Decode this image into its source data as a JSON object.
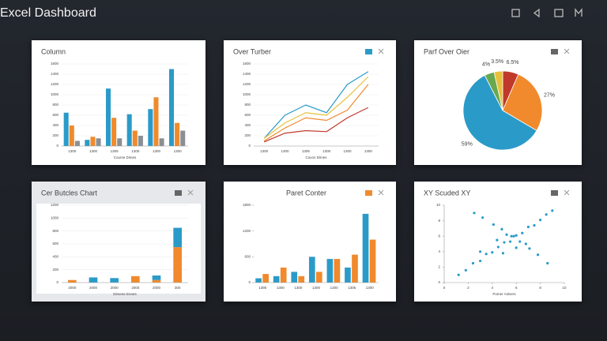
{
  "header": {
    "title": "Excel Dashboard"
  },
  "chart_data": [
    {
      "type": "bar",
      "title": "Column",
      "x_label": "Course Dimes",
      "categories": [
        "1300",
        "1300",
        "1305",
        "1300",
        "1300",
        "1300"
      ],
      "series": [
        {
          "color": "#2a9bc8",
          "values": [
            650,
            120,
            1120,
            620,
            720,
            1500
          ]
        },
        {
          "color": "#f08a2c",
          "values": [
            400,
            180,
            550,
            300,
            950,
            450
          ]
        },
        {
          "color": "#8a8f94",
          "values": [
            100,
            150,
            150,
            200,
            150,
            300
          ]
        }
      ],
      "ylim": [
        0,
        1600
      ],
      "yticks": [
        0,
        200,
        400,
        600,
        800,
        1000,
        1200,
        1400,
        1600
      ],
      "grid": true
    },
    {
      "type": "line",
      "title": "Over Turber",
      "x_label": "Cuvon Dimes",
      "categories": [
        "1300",
        "1300",
        "1305",
        "1300",
        "1300",
        "1300"
      ],
      "series": [
        {
          "color": "#2a9bc8",
          "values": [
            150,
            600,
            800,
            650,
            1200,
            1450
          ]
        },
        {
          "color": "#e8c13a",
          "values": [
            150,
            450,
            650,
            600,
            950,
            1350
          ]
        },
        {
          "color": "#f08a2c",
          "values": [
            100,
            350,
            550,
            500,
            700,
            1200
          ]
        },
        {
          "color": "#c0392b",
          "values": [
            80,
            250,
            300,
            280,
            550,
            750
          ]
        }
      ],
      "ylim": [
        0,
        1600
      ],
      "yticks": [
        0,
        200,
        400,
        600,
        800,
        1000,
        1200,
        1400,
        1600
      ],
      "grid": true
    },
    {
      "type": "pie",
      "title": "Parf Over Oier",
      "values": [
        6.5,
        27,
        59,
        4,
        3.5
      ],
      "value_labels": [
        "6.5%",
        "27%",
        "59%",
        "4%",
        "3.5%"
      ],
      "colors": [
        "#c0392b",
        "#f08a2c",
        "#2a9bc8",
        "#6aa84f",
        "#e8c13a"
      ]
    },
    {
      "type": "bar",
      "title": "Cer Butcles Chart",
      "x_label": "Dimene Ennes",
      "stacked": true,
      "categories": [
        "2000",
        "2000",
        "2000",
        "2000",
        "2000",
        "300"
      ],
      "series": [
        {
          "color": "#f08a2c",
          "values": [
            40,
            0,
            0,
            100,
            40,
            550
          ]
        },
        {
          "color": "#2a9bc8",
          "values": [
            0,
            80,
            70,
            0,
            70,
            300
          ]
        }
      ],
      "ylim": [
        0,
        1200
      ],
      "yticks": [
        0,
        200,
        400,
        600,
        800,
        1000,
        1200
      ],
      "grid": true
    },
    {
      "type": "bar",
      "title": "Paret Conter",
      "categories": [
        "1390",
        "1300",
        "1300",
        "1300",
        "1300",
        "1305",
        "1300"
      ],
      "series": [
        {
          "color": "#2a9bc8",
          "values": [
            100,
            150,
            250,
            600,
            550,
            350,
            1600
          ]
        },
        {
          "color": "#f08a2c",
          "values": [
            200,
            350,
            150,
            250,
            550,
            650,
            1000
          ]
        }
      ],
      "ylim": [
        0,
        1800
      ],
      "yticks": [
        0,
        600,
        1200,
        1800
      ],
      "grid": false
    },
    {
      "type": "scatter",
      "title": "XY Scuded XY",
      "x_label": "Pomer Anlsers",
      "color": "#2a9bc8",
      "x": [
        1.2,
        1.8,
        2.4,
        3.0,
        3.5,
        4.0,
        4.5,
        5.0,
        5.5,
        6.0,
        6.5,
        7.0,
        7.5,
        8.0,
        8.5,
        9.0,
        2.5,
        3.2,
        4.1,
        4.8,
        5.6,
        6.3,
        7.1,
        7.8,
        8.6,
        3.0,
        4.4,
        5.2,
        6.8,
        6.0,
        5.8,
        4.9
      ],
      "y": [
        1.0,
        1.6,
        2.5,
        2.8,
        3.7,
        3.9,
        4.6,
        5.2,
        5.3,
        6.1,
        6.4,
        7.2,
        7.4,
        8.1,
        8.8,
        9.3,
        9.0,
        8.4,
        7.5,
        6.9,
        6.0,
        5.3,
        4.4,
        3.6,
        2.5,
        4.0,
        5.5,
        6.2,
        5.0,
        4.5,
        6.0,
        3.8
      ],
      "xlim": [
        0,
        10
      ],
      "xticks": [
        0,
        2,
        4,
        6,
        8,
        10
      ],
      "ylim": [
        0,
        10
      ],
      "yticks": [
        0,
        2,
        4,
        6,
        8,
        10
      ]
    }
  ]
}
